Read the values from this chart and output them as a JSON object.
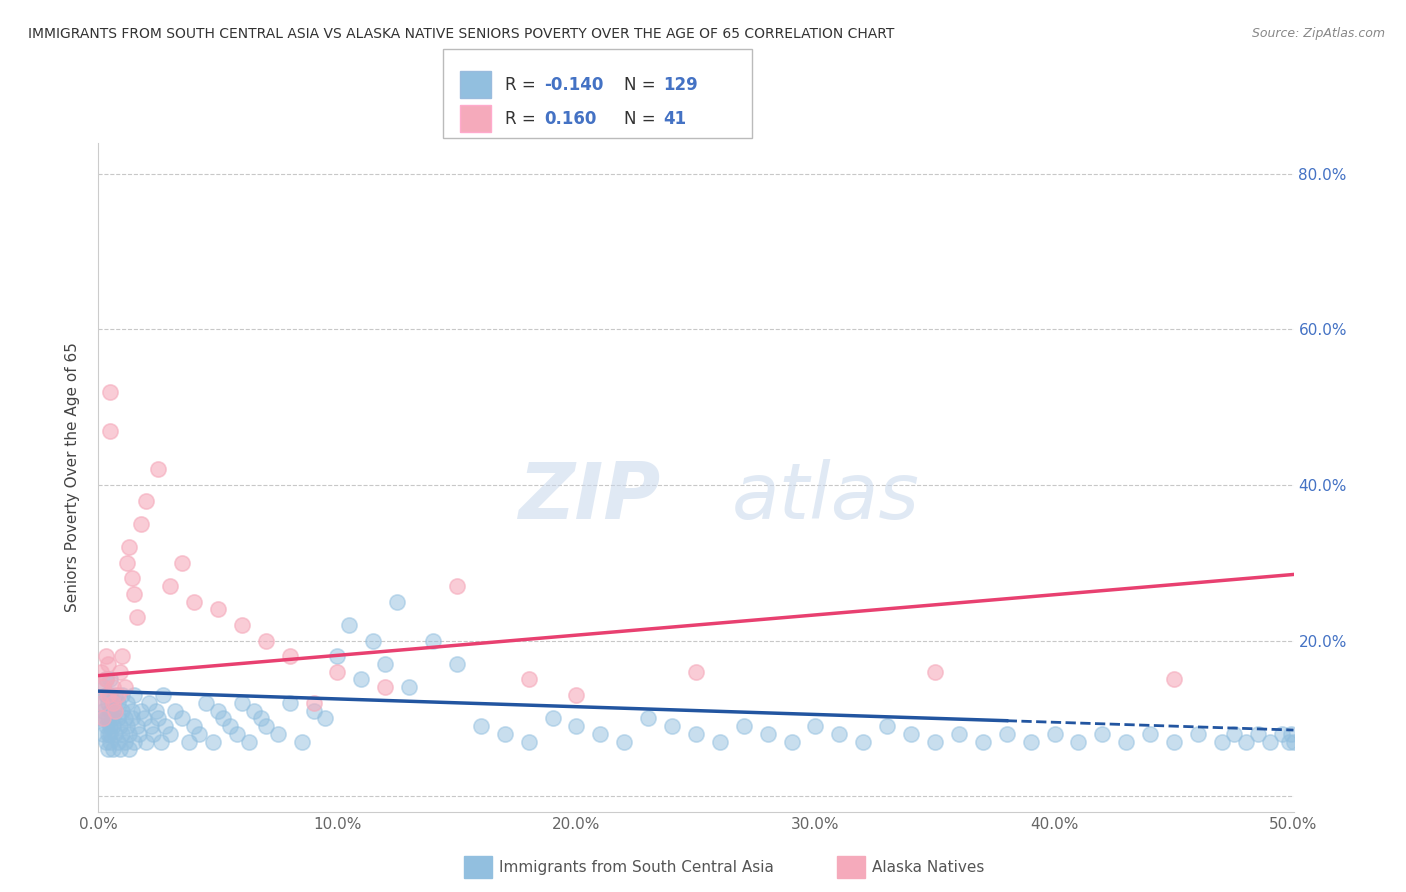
{
  "title": "IMMIGRANTS FROM SOUTH CENTRAL ASIA VS ALASKA NATIVE SENIORS POVERTY OVER THE AGE OF 65 CORRELATION CHART",
  "source": "Source: ZipAtlas.com",
  "ylabel": "Seniors Poverty Over the Age of 65",
  "xlabel_legend1": "Immigrants from South Central Asia",
  "xlabel_legend2": "Alaska Natives",
  "xlim": [
    0.0,
    0.5
  ],
  "ylim": [
    -0.02,
    0.84
  ],
  "xticks": [
    0.0,
    0.1,
    0.2,
    0.3,
    0.4,
    0.5
  ],
  "xticklabels": [
    "0.0%",
    "10.0%",
    "20.0%",
    "30.0%",
    "40.0%",
    "50.0%"
  ],
  "yticks": [
    0.0,
    0.2,
    0.4,
    0.6,
    0.8
  ],
  "yticklabels_right": [
    "",
    "20.0%",
    "40.0%",
    "60.0%",
    "80.0%"
  ],
  "legend_r1": "-0.140",
  "legend_n1": "129",
  "legend_r2": "0.160",
  "legend_n2": "41",
  "blue_color": "#92BFDF",
  "pink_color": "#F5AABB",
  "blue_line_color": "#2255A0",
  "pink_line_color": "#E84070",
  "watermark_zip": "ZIP",
  "watermark_atlas": "atlas",
  "blue_scatter_x": [
    0.001,
    0.001,
    0.002,
    0.002,
    0.002,
    0.003,
    0.003,
    0.003,
    0.003,
    0.003,
    0.004,
    0.004,
    0.004,
    0.004,
    0.005,
    0.005,
    0.005,
    0.005,
    0.005,
    0.005,
    0.006,
    0.006,
    0.006,
    0.006,
    0.007,
    0.007,
    0.007,
    0.008,
    0.008,
    0.008,
    0.009,
    0.009,
    0.01,
    0.01,
    0.01,
    0.011,
    0.011,
    0.012,
    0.012,
    0.013,
    0.013,
    0.014,
    0.014,
    0.015,
    0.015,
    0.016,
    0.017,
    0.018,
    0.019,
    0.02,
    0.021,
    0.022,
    0.023,
    0.024,
    0.025,
    0.026,
    0.027,
    0.028,
    0.03,
    0.032,
    0.035,
    0.038,
    0.04,
    0.042,
    0.045,
    0.048,
    0.05,
    0.052,
    0.055,
    0.058,
    0.06,
    0.063,
    0.065,
    0.068,
    0.07,
    0.075,
    0.08,
    0.085,
    0.09,
    0.095,
    0.1,
    0.105,
    0.11,
    0.115,
    0.12,
    0.125,
    0.13,
    0.14,
    0.15,
    0.16,
    0.17,
    0.18,
    0.19,
    0.2,
    0.21,
    0.22,
    0.23,
    0.24,
    0.25,
    0.26,
    0.27,
    0.28,
    0.29,
    0.3,
    0.31,
    0.32,
    0.33,
    0.34,
    0.35,
    0.36,
    0.37,
    0.38,
    0.39,
    0.4,
    0.41,
    0.42,
    0.43,
    0.44,
    0.45,
    0.46,
    0.47,
    0.475,
    0.48,
    0.485,
    0.49,
    0.495,
    0.498,
    0.499,
    0.5
  ],
  "blue_scatter_y": [
    0.1,
    0.12,
    0.08,
    0.14,
    0.11,
    0.09,
    0.13,
    0.07,
    0.15,
    0.1,
    0.08,
    0.12,
    0.1,
    0.06,
    0.11,
    0.09,
    0.13,
    0.07,
    0.15,
    0.08,
    0.1,
    0.12,
    0.06,
    0.09,
    0.11,
    0.08,
    0.13,
    0.07,
    0.1,
    0.12,
    0.09,
    0.06,
    0.11,
    0.08,
    0.13,
    0.07,
    0.1,
    0.09,
    0.12,
    0.08,
    0.06,
    0.11,
    0.1,
    0.07,
    0.13,
    0.09,
    0.08,
    0.11,
    0.1,
    0.07,
    0.12,
    0.09,
    0.08,
    0.11,
    0.1,
    0.07,
    0.13,
    0.09,
    0.08,
    0.11,
    0.1,
    0.07,
    0.09,
    0.08,
    0.12,
    0.07,
    0.11,
    0.1,
    0.09,
    0.08,
    0.12,
    0.07,
    0.11,
    0.1,
    0.09,
    0.08,
    0.12,
    0.07,
    0.11,
    0.1,
    0.18,
    0.22,
    0.15,
    0.2,
    0.17,
    0.25,
    0.14,
    0.2,
    0.17,
    0.09,
    0.08,
    0.07,
    0.1,
    0.09,
    0.08,
    0.07,
    0.1,
    0.09,
    0.08,
    0.07,
    0.09,
    0.08,
    0.07,
    0.09,
    0.08,
    0.07,
    0.09,
    0.08,
    0.07,
    0.08,
    0.07,
    0.08,
    0.07,
    0.08,
    0.07,
    0.08,
    0.07,
    0.08,
    0.07,
    0.08,
    0.07,
    0.08,
    0.07,
    0.08,
    0.07,
    0.08,
    0.07,
    0.08,
    0.07
  ],
  "pink_scatter_x": [
    0.001,
    0.001,
    0.002,
    0.002,
    0.003,
    0.003,
    0.004,
    0.004,
    0.005,
    0.005,
    0.006,
    0.006,
    0.007,
    0.008,
    0.009,
    0.01,
    0.011,
    0.012,
    0.013,
    0.014,
    0.015,
    0.016,
    0.018,
    0.02,
    0.025,
    0.03,
    0.035,
    0.04,
    0.05,
    0.06,
    0.07,
    0.08,
    0.09,
    0.1,
    0.12,
    0.15,
    0.18,
    0.2,
    0.25,
    0.35,
    0.45
  ],
  "pink_scatter_y": [
    0.16,
    0.12,
    0.14,
    0.1,
    0.15,
    0.18,
    0.13,
    0.17,
    0.47,
    0.52,
    0.14,
    0.12,
    0.11,
    0.13,
    0.16,
    0.18,
    0.14,
    0.3,
    0.32,
    0.28,
    0.26,
    0.23,
    0.35,
    0.38,
    0.42,
    0.27,
    0.3,
    0.25,
    0.24,
    0.22,
    0.2,
    0.18,
    0.12,
    0.16,
    0.14,
    0.27,
    0.15,
    0.13,
    0.16,
    0.16,
    0.15
  ],
  "blue_trend_y_start": 0.135,
  "blue_trend_y_end": 0.085,
  "pink_trend_y_start": 0.155,
  "pink_trend_y_end": 0.285
}
